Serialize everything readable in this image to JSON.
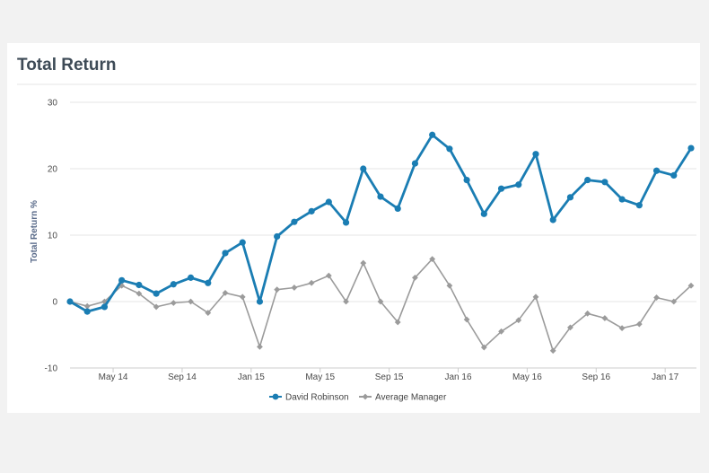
{
  "header": {
    "title": "Total Return"
  },
  "colors": {
    "david": "#1a7db3",
    "average": "#9b9b9b",
    "grid": "#e6e6e6",
    "axis": "#cccccc"
  },
  "chart_data": {
    "type": "line",
    "title": "Total Return",
    "xlabel": "",
    "ylabel": "Total Return %",
    "ylim": [
      -10,
      30
    ],
    "yticks": [
      -10,
      0,
      10,
      20,
      30
    ],
    "grid": true,
    "legend_position": "bottom",
    "xticks": [
      {
        "label": "May 14",
        "index": 2.5
      },
      {
        "label": "Sep 14",
        "index": 6.5
      },
      {
        "label": "Jan 15",
        "index": 10.5
      },
      {
        "label": "May 15",
        "index": 14.5
      },
      {
        "label": "Sep 15",
        "index": 18.5
      },
      {
        "label": "Jan 16",
        "index": 22.5
      },
      {
        "label": "May 16",
        "index": 26.5
      },
      {
        "label": "Sep 16",
        "index": 30.5
      },
      {
        "label": "Jan 17",
        "index": 34.5
      }
    ],
    "series": [
      {
        "name": "David Robinson",
        "marker": "circle",
        "values": [
          0,
          -1.5,
          -0.8,
          3.2,
          2.5,
          1.2,
          2.6,
          3.6,
          2.8,
          7.3,
          8.9,
          0,
          9.8,
          12,
          13.6,
          15,
          11.9,
          20,
          15.8,
          14,
          20.8,
          25.1,
          23,
          18.3,
          13.2,
          17,
          17.6,
          22.2,
          12.3,
          15.7,
          18.3,
          18,
          15.4,
          14.5,
          19.7,
          19,
          23.1
        ]
      },
      {
        "name": "Average Manager",
        "marker": "diamond",
        "values": [
          0,
          -0.7,
          0,
          2.4,
          1.2,
          -0.8,
          -0.2,
          0,
          -1.7,
          1.3,
          0.7,
          -6.8,
          1.8,
          2.1,
          2.8,
          3.9,
          0,
          5.8,
          0,
          -3.1,
          3.6,
          6.4,
          2.4,
          -2.7,
          -6.9,
          -4.5,
          -2.8,
          0.7,
          -7.4,
          -3.9,
          -1.8,
          -2.5,
          -4,
          -3.4,
          0.6,
          0,
          2.4
        ]
      }
    ]
  }
}
